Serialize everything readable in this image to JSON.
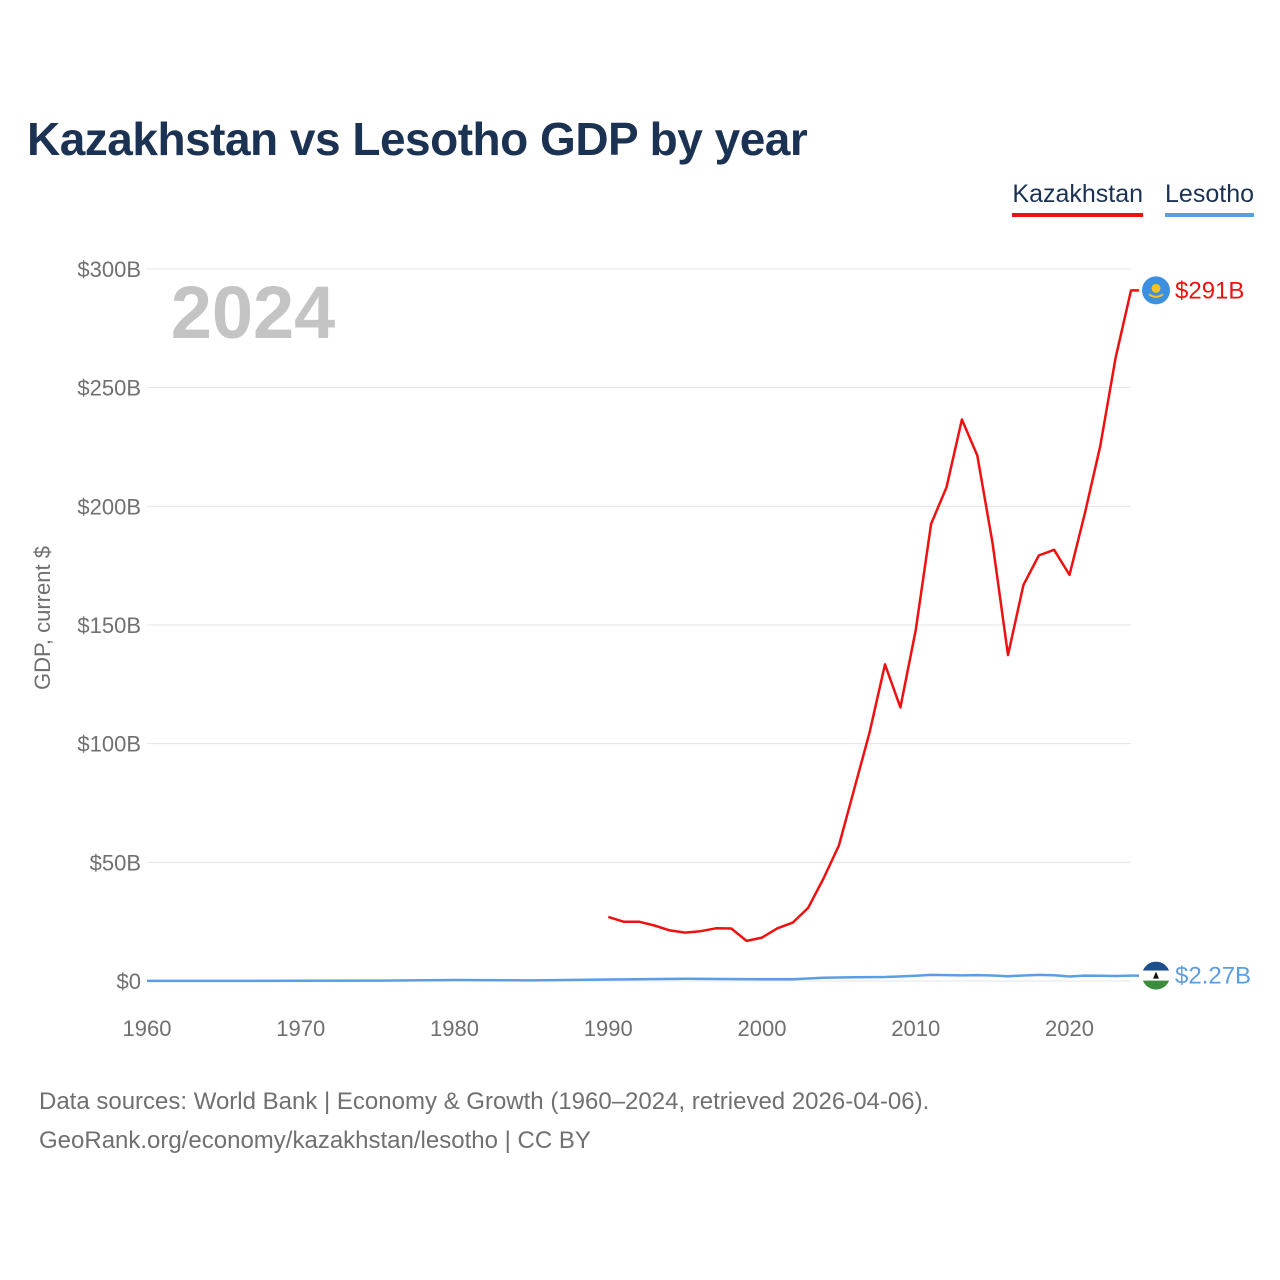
{
  "title": "Kazakhstan vs Lesotho GDP by year",
  "legend": [
    {
      "label": "Kazakhstan",
      "color": "#ee1111"
    },
    {
      "label": "Lesotho",
      "color": "#5b9ee6"
    }
  ],
  "year_label": "2024",
  "footer": {
    "line1": "Data sources: World Bank | Economy & Growth (1960–2024, retrieved 2026-04-06).",
    "line2": "GeoRank.org/economy/kazakhstan/lesotho | CC BY"
  },
  "chart_data": {
    "type": "line",
    "title": "Kazakhstan vs Lesotho GDP by year",
    "xlabel": "",
    "ylabel": "GDP, current $",
    "xlim": [
      1960,
      2024
    ],
    "ylim": [
      0,
      300
    ],
    "y_unit": "billions USD",
    "x_ticks": [
      1960,
      1970,
      1980,
      1990,
      2000,
      2010,
      2020
    ],
    "y_ticks": [
      0,
      50,
      100,
      150,
      200,
      250,
      300
    ],
    "y_tick_labels": [
      "$0",
      "$50B",
      "$100B",
      "$150B",
      "$200B",
      "$250B",
      "$300B"
    ],
    "series": [
      {
        "name": "Kazakhstan",
        "color": "#ee1111",
        "end_label": "$291B",
        "x": [
          1990,
          1991,
          1992,
          1993,
          1994,
          1995,
          1996,
          1997,
          1998,
          1999,
          2000,
          2001,
          2002,
          2003,
          2004,
          2005,
          2006,
          2007,
          2008,
          2009,
          2010,
          2011,
          2012,
          2013,
          2014,
          2015,
          2016,
          2017,
          2018,
          2019,
          2020,
          2021,
          2022,
          2023,
          2024
        ],
        "y": [
          27,
          25,
          25,
          23.4,
          21.3,
          20.4,
          21.0,
          22.2,
          22.1,
          16.9,
          18.3,
          22.2,
          24.6,
          30.8,
          43.2,
          57.1,
          81.0,
          104.8,
          133.4,
          115.3,
          148.0,
          192.6,
          208.0,
          236.6,
          221.4,
          184.4,
          137.3,
          166.8,
          179.3,
          181.7,
          171.1,
          197.1,
          225.5,
          262.6,
          291.0
        ]
      },
      {
        "name": "Lesotho",
        "color": "#5b9ee6",
        "end_label": "$2.27B",
        "x": [
          1960,
          1965,
          1970,
          1975,
          1980,
          1985,
          1990,
          1995,
          2000,
          2002,
          2004,
          2006,
          2008,
          2010,
          2011,
          2012,
          2013,
          2014,
          2015,
          2016,
          2017,
          2018,
          2019,
          2020,
          2021,
          2022,
          2023,
          2024
        ],
        "y": [
          0.03,
          0.05,
          0.07,
          0.15,
          0.43,
          0.27,
          0.62,
          0.93,
          0.77,
          0.7,
          1.38,
          1.58,
          1.7,
          2.18,
          2.56,
          2.48,
          2.35,
          2.48,
          2.32,
          2.04,
          2.3,
          2.58,
          2.42,
          1.88,
          2.27,
          2.24,
          2.11,
          2.27
        ]
      }
    ]
  }
}
